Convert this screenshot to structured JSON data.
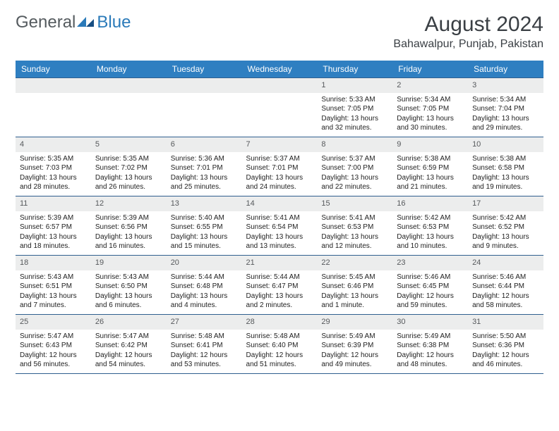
{
  "logo": {
    "general": "General",
    "blue": "Blue",
    "icon_color": "#2a7ab9"
  },
  "header": {
    "title": "August 2024",
    "location": "Bahawalpur, Punjab, Pakistan"
  },
  "colors": {
    "header_bar": "#2f7fc1",
    "header_text": "#ffffff",
    "row_border": "#2f5f8f",
    "daynum_bg": "#eceded",
    "body_text": "#222222"
  },
  "weekdays": [
    "Sunday",
    "Monday",
    "Tuesday",
    "Wednesday",
    "Thursday",
    "Friday",
    "Saturday"
  ],
  "grid": {
    "first_day_index": 4,
    "days_in_month": 31,
    "rows": 5,
    "cols": 7
  },
  "days": {
    "1": {
      "sunrise": "5:33 AM",
      "sunset": "7:05 PM",
      "daylight": "13 hours and 32 minutes."
    },
    "2": {
      "sunrise": "5:34 AM",
      "sunset": "7:05 PM",
      "daylight": "13 hours and 30 minutes."
    },
    "3": {
      "sunrise": "5:34 AM",
      "sunset": "7:04 PM",
      "daylight": "13 hours and 29 minutes."
    },
    "4": {
      "sunrise": "5:35 AM",
      "sunset": "7:03 PM",
      "daylight": "13 hours and 28 minutes."
    },
    "5": {
      "sunrise": "5:35 AM",
      "sunset": "7:02 PM",
      "daylight": "13 hours and 26 minutes."
    },
    "6": {
      "sunrise": "5:36 AM",
      "sunset": "7:01 PM",
      "daylight": "13 hours and 25 minutes."
    },
    "7": {
      "sunrise": "5:37 AM",
      "sunset": "7:01 PM",
      "daylight": "13 hours and 24 minutes."
    },
    "8": {
      "sunrise": "5:37 AM",
      "sunset": "7:00 PM",
      "daylight": "13 hours and 22 minutes."
    },
    "9": {
      "sunrise": "5:38 AM",
      "sunset": "6:59 PM",
      "daylight": "13 hours and 21 minutes."
    },
    "10": {
      "sunrise": "5:38 AM",
      "sunset": "6:58 PM",
      "daylight": "13 hours and 19 minutes."
    },
    "11": {
      "sunrise": "5:39 AM",
      "sunset": "6:57 PM",
      "daylight": "13 hours and 18 minutes."
    },
    "12": {
      "sunrise": "5:39 AM",
      "sunset": "6:56 PM",
      "daylight": "13 hours and 16 minutes."
    },
    "13": {
      "sunrise": "5:40 AM",
      "sunset": "6:55 PM",
      "daylight": "13 hours and 15 minutes."
    },
    "14": {
      "sunrise": "5:41 AM",
      "sunset": "6:54 PM",
      "daylight": "13 hours and 13 minutes."
    },
    "15": {
      "sunrise": "5:41 AM",
      "sunset": "6:53 PM",
      "daylight": "13 hours and 12 minutes."
    },
    "16": {
      "sunrise": "5:42 AM",
      "sunset": "6:53 PM",
      "daylight": "13 hours and 10 minutes."
    },
    "17": {
      "sunrise": "5:42 AM",
      "sunset": "6:52 PM",
      "daylight": "13 hours and 9 minutes."
    },
    "18": {
      "sunrise": "5:43 AM",
      "sunset": "6:51 PM",
      "daylight": "13 hours and 7 minutes."
    },
    "19": {
      "sunrise": "5:43 AM",
      "sunset": "6:50 PM",
      "daylight": "13 hours and 6 minutes."
    },
    "20": {
      "sunrise": "5:44 AM",
      "sunset": "6:48 PM",
      "daylight": "13 hours and 4 minutes."
    },
    "21": {
      "sunrise": "5:44 AM",
      "sunset": "6:47 PM",
      "daylight": "13 hours and 2 minutes."
    },
    "22": {
      "sunrise": "5:45 AM",
      "sunset": "6:46 PM",
      "daylight": "13 hours and 1 minute."
    },
    "23": {
      "sunrise": "5:46 AM",
      "sunset": "6:45 PM",
      "daylight": "12 hours and 59 minutes."
    },
    "24": {
      "sunrise": "5:46 AM",
      "sunset": "6:44 PM",
      "daylight": "12 hours and 58 minutes."
    },
    "25": {
      "sunrise": "5:47 AM",
      "sunset": "6:43 PM",
      "daylight": "12 hours and 56 minutes."
    },
    "26": {
      "sunrise": "5:47 AM",
      "sunset": "6:42 PM",
      "daylight": "12 hours and 54 minutes."
    },
    "27": {
      "sunrise": "5:48 AM",
      "sunset": "6:41 PM",
      "daylight": "12 hours and 53 minutes."
    },
    "28": {
      "sunrise": "5:48 AM",
      "sunset": "6:40 PM",
      "daylight": "12 hours and 51 minutes."
    },
    "29": {
      "sunrise": "5:49 AM",
      "sunset": "6:39 PM",
      "daylight": "12 hours and 49 minutes."
    },
    "30": {
      "sunrise": "5:49 AM",
      "sunset": "6:38 PM",
      "daylight": "12 hours and 48 minutes."
    },
    "31": {
      "sunrise": "5:50 AM",
      "sunset": "6:36 PM",
      "daylight": "12 hours and 46 minutes."
    }
  },
  "labels": {
    "sunrise": "Sunrise:",
    "sunset": "Sunset:",
    "daylight": "Daylight:"
  }
}
